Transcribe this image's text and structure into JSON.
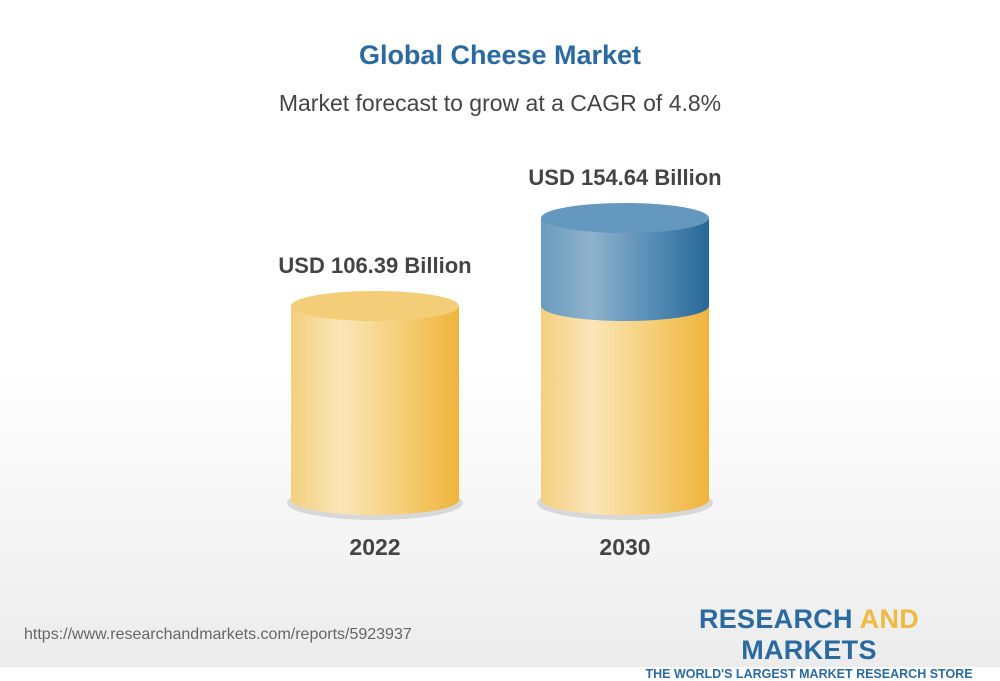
{
  "chart_data": {
    "type": "bar",
    "style": "3d-cylinder",
    "title": "Global Cheese Market",
    "subtitle": "Market forecast to grow at a CAGR of 4.8%",
    "categories": [
      "2022",
      "2030"
    ],
    "values": [
      106.39,
      154.64
    ],
    "data_labels": [
      "USD 106.39 Billion",
      "USD 154.64 Billion"
    ],
    "unit": "USD Billion",
    "colors": {
      "base": "#f0b942",
      "growth": "#2a6aa0"
    },
    "grid": false,
    "xlabel": "",
    "ylabel": ""
  },
  "footer": {
    "url": "https://www.researchandmarkets.com/reports/5923937",
    "logo_line1_a": "RESEARCH ",
    "logo_line1_b": "AND",
    "logo_line1_c": " MARKETS",
    "logo_line2": "THE WORLD'S LARGEST MARKET RESEARCH STORE"
  }
}
